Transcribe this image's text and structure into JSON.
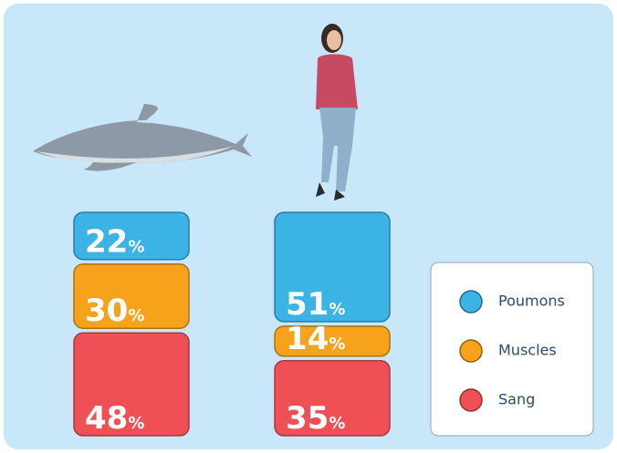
{
  "chart_data": {
    "type": "stacked-bar",
    "categories": [
      null,
      null
    ],
    "series": [
      {
        "name": "Poumons",
        "color": "#3bb4e5",
        "values": [
          22,
          51
        ],
        "value_labels": [
          "22%",
          "51%"
        ]
      },
      {
        "name": "Muscles",
        "color": "#f7a21b",
        "values": [
          30,
          14
        ],
        "value_labels": [
          "30%",
          "14%"
        ]
      },
      {
        "name": "Sang",
        "color": "#ef5056",
        "values": [
          48,
          35
        ],
        "value_labels": [
          "48%",
          "35%"
        ]
      }
    ]
  }
}
